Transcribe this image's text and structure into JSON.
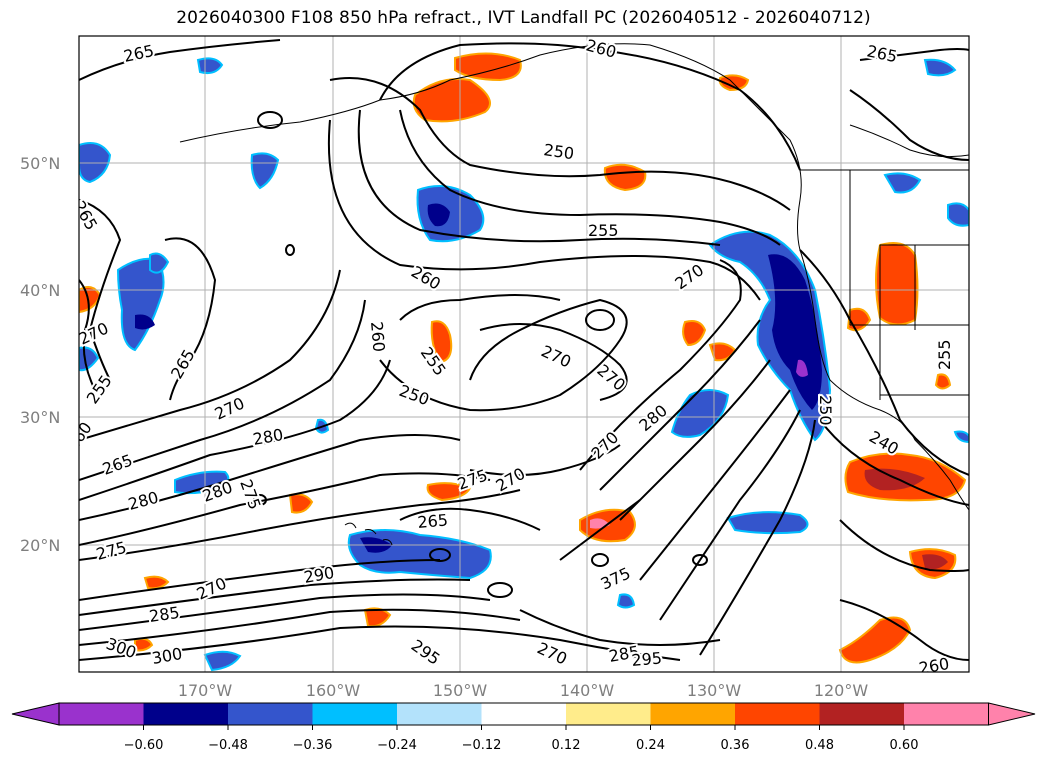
{
  "title": "2026040300 F108 850 hPa refract., IVT Landfall PC (2026040512 - 2026040712)",
  "lat_labels": [
    "50°N",
    "40°N",
    "30°N",
    "20°N"
  ],
  "lon_labels": [
    "170°W",
    "160°W",
    "150°W",
    "140°W",
    "130°W",
    "120°W"
  ],
  "contour_labels": [
    "265",
    "250",
    "255",
    "260",
    "265",
    "270",
    "255",
    "265",
    "260",
    "265",
    "270",
    "280",
    "280",
    "275",
    "280",
    "275",
    "270",
    "275",
    "270",
    "265",
    "290",
    "285",
    "300",
    "300",
    "295",
    "270",
    "285",
    "295",
    "375",
    "250",
    "240",
    "260",
    "265",
    "270",
    "270",
    "280",
    "270",
    "250",
    "255",
    "270",
    "255",
    "260",
    "260"
  ],
  "colorbar": {
    "colors": [
      "#9a32cd",
      "#00008b",
      "#3455cc",
      "#00bfff",
      "#b3e2fb",
      "#ffffff",
      "#ffec8b",
      "#ffa500",
      "#ff4500",
      "#b22222",
      "#ff82ab"
    ],
    "ticks": [
      "−0.60",
      "−0.48",
      "−0.36",
      "−0.24",
      "−0.12",
      "0.12",
      "0.24",
      "0.36",
      "0.48",
      "0.60"
    ]
  }
}
